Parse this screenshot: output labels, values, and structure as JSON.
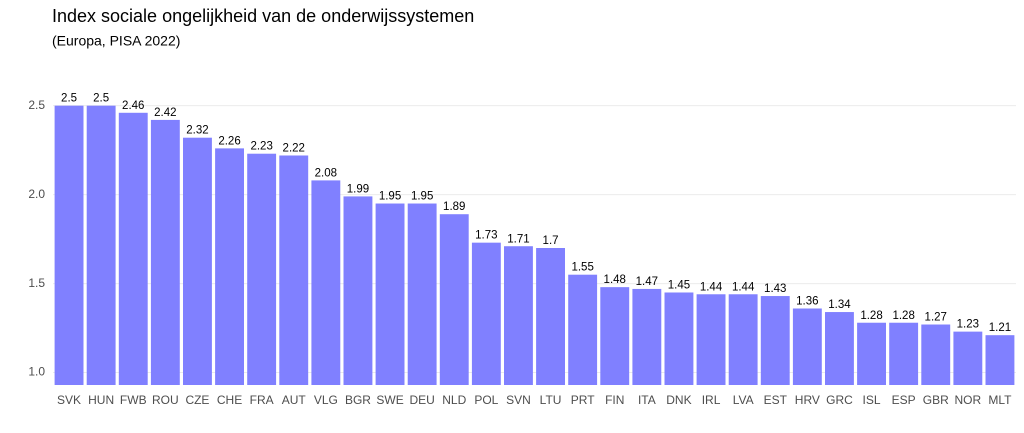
{
  "chart_data": {
    "type": "bar",
    "title": "Index sociale ongelijkheid van de onderwijssystemen",
    "subtitle": "(Europa, PISA 2022)",
    "categories": [
      "SVK",
      "HUN",
      "FWB",
      "ROU",
      "CZE",
      "CHE",
      "FRA",
      "AUT",
      "VLG",
      "BGR",
      "SWE",
      "DEU",
      "NLD",
      "POL",
      "SVN",
      "LTU",
      "PRT",
      "FIN",
      "ITA",
      "DNK",
      "IRL",
      "LVA",
      "EST",
      "HRV",
      "GRC",
      "ISL",
      "ESP",
      "GBR",
      "NOR",
      "MLT"
    ],
    "values": [
      2.5,
      2.5,
      2.46,
      2.42,
      2.32,
      2.26,
      2.23,
      2.22,
      2.08,
      1.99,
      1.95,
      1.95,
      1.89,
      1.73,
      1.71,
      1.7,
      1.55,
      1.48,
      1.47,
      1.45,
      1.44,
      1.44,
      1.43,
      1.36,
      1.34,
      1.28,
      1.28,
      1.27,
      1.23,
      1.21
    ],
    "color": "#8080ff",
    "ylim": [
      0.93,
      2.56
    ],
    "yticks": [
      {
        "value": 1,
        "label": "1.0"
      },
      1.5,
      {
        "value": 2,
        "label": "2.0"
      },
      2.5
    ],
    "grid": true
  }
}
